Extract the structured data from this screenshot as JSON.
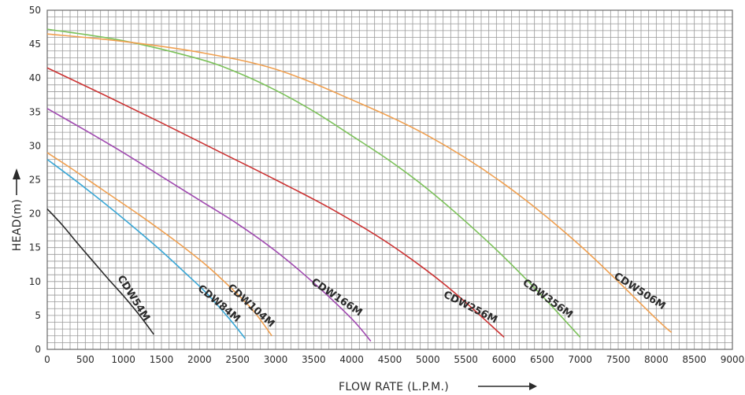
{
  "chart_data": {
    "type": "line",
    "xlabel": "FLOW RATE (L.P.M.)",
    "ylabel": "HEAD(m)",
    "xlim": [
      0,
      9000
    ],
    "ylim": [
      0,
      50
    ],
    "x_ticks": [
      0,
      500,
      1000,
      1500,
      2000,
      2500,
      3000,
      3500,
      4000,
      4500,
      5000,
      5500,
      6000,
      6500,
      7000,
      7500,
      8000,
      8500,
      9000
    ],
    "y_ticks": [
      0,
      5,
      10,
      15,
      20,
      25,
      30,
      35,
      40,
      45,
      50
    ],
    "grid": true,
    "grid_minor": {
      "x_step": 100,
      "y_step": 1
    },
    "series": [
      {
        "name": "CDW54M",
        "color": "#2a2a2a",
        "x": [
          0,
          200,
          400,
          600,
          800,
          1000,
          1200,
          1400
        ],
        "y": [
          20.7,
          18.3,
          15.6,
          13.0,
          10.4,
          7.9,
          5.2,
          2.2
        ]
      },
      {
        "name": "CDW84M",
        "color": "#3aa7d6",
        "x": [
          0,
          300,
          600,
          900,
          1200,
          1500,
          1800,
          2100,
          2400,
          2600
        ],
        "y": [
          28.0,
          25.5,
          22.9,
          20.2,
          17.4,
          14.5,
          11.4,
          8.2,
          4.4,
          1.6
        ]
      },
      {
        "name": "CDW104M",
        "color": "#f0a050",
        "x": [
          0,
          300,
          600,
          900,
          1200,
          1500,
          1800,
          2100,
          2400,
          2700,
          2950
        ],
        "y": [
          29.0,
          26.8,
          24.5,
          22.2,
          19.9,
          17.5,
          15.0,
          12.3,
          9.2,
          5.8,
          2.0
        ]
      },
      {
        "name": "CDW166M",
        "color": "#a04ab0",
        "x": [
          0,
          500,
          1000,
          1500,
          2000,
          2500,
          3000,
          3500,
          4000,
          4250
        ],
        "y": [
          35.5,
          32.3,
          29.0,
          25.5,
          22.0,
          18.5,
          14.5,
          9.8,
          4.5,
          1.2
        ]
      },
      {
        "name": "CDW256M",
        "color": "#cc3333",
        "x": [
          0,
          750,
          1500,
          2250,
          3000,
          3750,
          4500,
          5250,
          6000
        ],
        "y": [
          41.5,
          37.5,
          33.4,
          29.2,
          25.0,
          20.6,
          15.5,
          9.3,
          1.8
        ]
      },
      {
        "name": "CDW356M",
        "color": "#7cc25a",
        "x": [
          0,
          1000,
          2000,
          2500,
          3000,
          3500,
          4000,
          4500,
          5000,
          5500,
          6000,
          6500,
          7000
        ],
        "y": [
          47.2,
          45.5,
          42.8,
          40.8,
          38.2,
          35.1,
          31.5,
          27.8,
          23.6,
          18.8,
          13.6,
          7.9,
          1.8
        ]
      },
      {
        "name": "CDW506M",
        "color": "#f0a050",
        "x": [
          0,
          1000,
          2000,
          3000,
          4000,
          5000,
          6000,
          7000,
          8000,
          8200
        ],
        "y": [
          46.5,
          45.4,
          43.8,
          41.3,
          36.8,
          31.5,
          24.4,
          15.3,
          4.5,
          2.5
        ]
      }
    ],
    "labels": [
      {
        "text": "CDW54M",
        "series": 0,
        "x": 1100,
        "y": 7.3,
        "angle": 58
      },
      {
        "text": "CDW84M",
        "series": 1,
        "x": 2230,
        "y": 6.4,
        "angle": 40
      },
      {
        "text": "CDW104M",
        "series": 2,
        "x": 2650,
        "y": 6.1,
        "angle": 42
      },
      {
        "text": "CDW166M",
        "series": 3,
        "x": 3780,
        "y": 7.3,
        "angle": 34
      },
      {
        "text": "CDW256M",
        "series": 4,
        "x": 5540,
        "y": 5.8,
        "angle": 27
      },
      {
        "text": "CDW356M",
        "series": 5,
        "x": 6550,
        "y": 7.1,
        "angle": 36
      },
      {
        "text": "CDW506M",
        "series": 6,
        "x": 7760,
        "y": 8.2,
        "angle": 33
      }
    ]
  }
}
